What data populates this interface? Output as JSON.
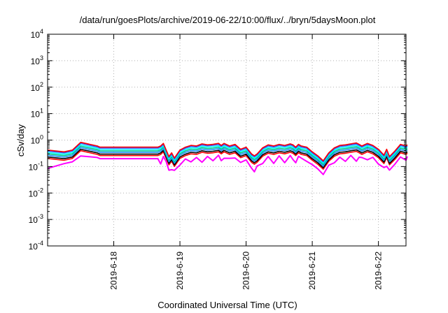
{
  "chart_data": {
    "type": "line",
    "title": "/data/run/goesPlots/archive/2019-06-22/10:00/flux/../bryn/5daysMoon.plot",
    "xlabel": "Coordinated Universal Time (UTC)",
    "ylabel": "cSv/day",
    "yscale": "log",
    "ylim": [
      0.0001,
      10000
    ],
    "xlim": [
      "2019-06-17 00:00",
      "2019-06-22 10:00"
    ],
    "grid": true,
    "y_ticks": [
      {
        "base": "10",
        "exp": "-4"
      },
      {
        "base": "10",
        "exp": "-3"
      },
      {
        "base": "10",
        "exp": "-2"
      },
      {
        "base": "10",
        "exp": "-1"
      },
      {
        "base": "10",
        "exp": "0"
      },
      {
        "base": "10",
        "exp": "1"
      },
      {
        "base": "10",
        "exp": "2"
      },
      {
        "base": "10",
        "exp": "3"
      },
      {
        "base": "10",
        "exp": "4"
      }
    ],
    "x_ticks": [
      "2019-6-18",
      "2019-6-19",
      "2019-6-20",
      "2019-6-21",
      "2019-6-22"
    ],
    "x_tick_values": [
      "2019-06-18",
      "2019-06-19",
      "2019-06-20",
      "2019-06-21",
      "2019-06-22"
    ],
    "x_hours": [
      0,
      6,
      9,
      12,
      18,
      19,
      20,
      21,
      22,
      24,
      30,
      36,
      40,
      41,
      42,
      43,
      44,
      45,
      46,
      48,
      50,
      52,
      54,
      56,
      58,
      60,
      62,
      63,
      64,
      66,
      68,
      70,
      72,
      74,
      75,
      76,
      78,
      80,
      82,
      84,
      86,
      88,
      89,
      90,
      91,
      92,
      94,
      96,
      98,
      100,
      102,
      104,
      106,
      108,
      110,
      112,
      113,
      114,
      116,
      118,
      120,
      122,
      123,
      124,
      126,
      128,
      130,
      130.5
    ],
    "series_base": [
      0.28,
      0.24,
      0.28,
      0.55,
      0.4,
      0.36,
      0.36,
      0.36,
      0.36,
      0.36,
      0.36,
      0.36,
      0.36,
      0.4,
      0.5,
      0.28,
      0.16,
      0.22,
      0.14,
      0.28,
      0.36,
      0.42,
      0.4,
      0.48,
      0.44,
      0.46,
      0.5,
      0.42,
      0.5,
      0.4,
      0.46,
      0.3,
      0.36,
      0.2,
      0.17,
      0.2,
      0.34,
      0.44,
      0.4,
      0.46,
      0.42,
      0.48,
      0.44,
      0.36,
      0.46,
      0.4,
      0.36,
      0.24,
      0.17,
      0.11,
      0.22,
      0.34,
      0.42,
      0.44,
      0.48,
      0.52,
      0.46,
      0.4,
      0.5,
      0.42,
      0.3,
      0.18,
      0.3,
      0.16,
      0.26,
      0.46,
      0.4,
      0.44
    ],
    "series": [
      {
        "color": "#ff00ff",
        "factor": 0.55,
        "dips": true
      },
      {
        "color": "#ff0000",
        "factor": 0.72
      },
      {
        "color": "#000000",
        "factor": 0.82
      },
      {
        "color": "#1e90ff",
        "factor": 0.95
      },
      {
        "color": "#00c78c",
        "factor": 1.08
      },
      {
        "color": "#00ffff",
        "factor": 1.22
      },
      {
        "color": "#3050ff",
        "factor": 1.38
      },
      {
        "color": "#ff0000",
        "factor": 1.5
      }
    ]
  }
}
